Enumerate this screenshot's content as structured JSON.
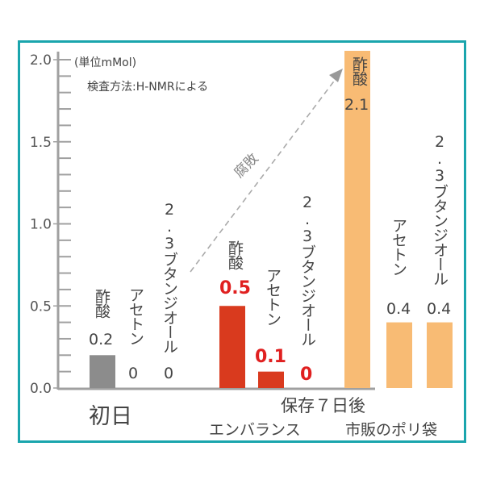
{
  "chart_data": {
    "type": "bar",
    "title": "",
    "unit_note": "(単位mMol)",
    "method_note": "検査方法:H-NMRによる",
    "ylim": [
      0,
      2.0
    ],
    "yticks": [
      0.0,
      0.5,
      1.0,
      1.5,
      2.0
    ],
    "ytick_labels": [
      "0.0",
      "0.5",
      "1.0",
      "1.5",
      "2.0"
    ],
    "minor_tick_step": 0.1,
    "groups": [
      {
        "name": "初日",
        "sublabel": "",
        "color": "#8c8c8c",
        "bars": [
          {
            "label": "酢酸",
            "value": 0.2,
            "value_text": "0.2"
          },
          {
            "label": "アセトン",
            "value": 0,
            "value_text": "0"
          },
          {
            "label": "2.3ブタンジオール",
            "value": 0,
            "value_text": "0"
          }
        ]
      },
      {
        "name": "保存７日後",
        "sublabel": "エンバランス",
        "color": "#d93a1e",
        "bars": [
          {
            "label": "酢酸",
            "value": 0.5,
            "value_text": "0.5"
          },
          {
            "label": "アセトン",
            "value": 0.1,
            "value_text": "0.1"
          },
          {
            "label": "2.3ブタンジオール",
            "value": 0,
            "value_text": "0"
          }
        ]
      },
      {
        "name": "",
        "sublabel": "市販のポリ袋",
        "color": "#f8bb74",
        "bars": [
          {
            "label": "酢酸",
            "value": 2.1,
            "value_text": "2.1"
          },
          {
            "label": "アセトン",
            "value": 0.4,
            "value_text": "0.4"
          },
          {
            "label": "2.3ブタンジオール",
            "value": 0.4,
            "value_text": "0.4"
          }
        ]
      }
    ],
    "annotation": {
      "text": "腐敗",
      "style": "dashed-arrow",
      "from": "enbalance",
      "to": "commercial-bag-acetic-acid"
    },
    "axis_color": "#a0a0a0",
    "frame_color": "#1aa5ad",
    "highlight_value_color": "#e02020"
  }
}
